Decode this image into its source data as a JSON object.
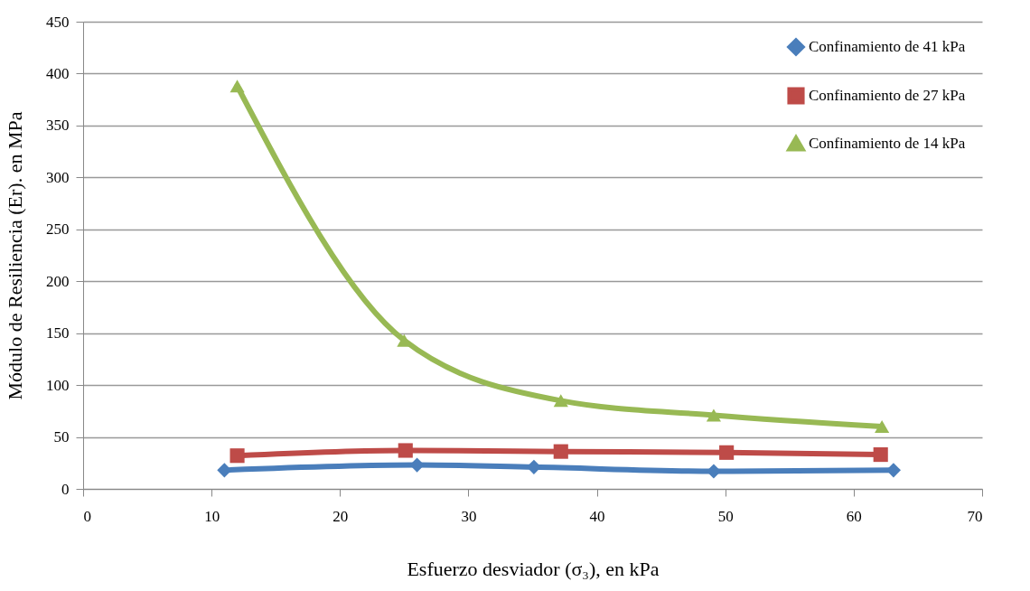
{
  "chart_data": {
    "type": "line",
    "xlabel": "Esfuerzo desviador (σ₃), en kPa",
    "ylabel": "Módulo de Resiliencia (Er). en MPa",
    "xlim": [
      0,
      70
    ],
    "xticks": [
      0,
      10,
      20,
      30,
      40,
      50,
      60,
      70
    ],
    "ylim": [
      0,
      450
    ],
    "yticks": [
      0,
      50,
      100,
      150,
      200,
      250,
      300,
      350,
      400,
      450
    ],
    "grid": "y",
    "legend": "top right",
    "line_style": "solid",
    "series": [
      {
        "name": "Confinamiento de 41 kPa",
        "color": "#4a7ebb",
        "marker": "diamond",
        "x": [
          11.0,
          26.0,
          35.1,
          49.1,
          63.1
        ],
        "values": [
          18,
          23,
          21,
          17,
          18
        ]
      },
      {
        "name": "Confinamiento de 27 kPa",
        "color": "#be4b48",
        "marker": "square",
        "x": [
          12.0,
          25.1,
          37.2,
          50.1,
          62.1
        ],
        "values": [
          32,
          37,
          36,
          35,
          33
        ]
      },
      {
        "name": "Confinamiento de 14 kPa",
        "color": "#98b954",
        "marker": "triangle",
        "x": [
          12.0,
          25.0,
          37.2,
          49.1,
          62.2
        ],
        "values": [
          388,
          143,
          85,
          71,
          60
        ]
      }
    ]
  }
}
